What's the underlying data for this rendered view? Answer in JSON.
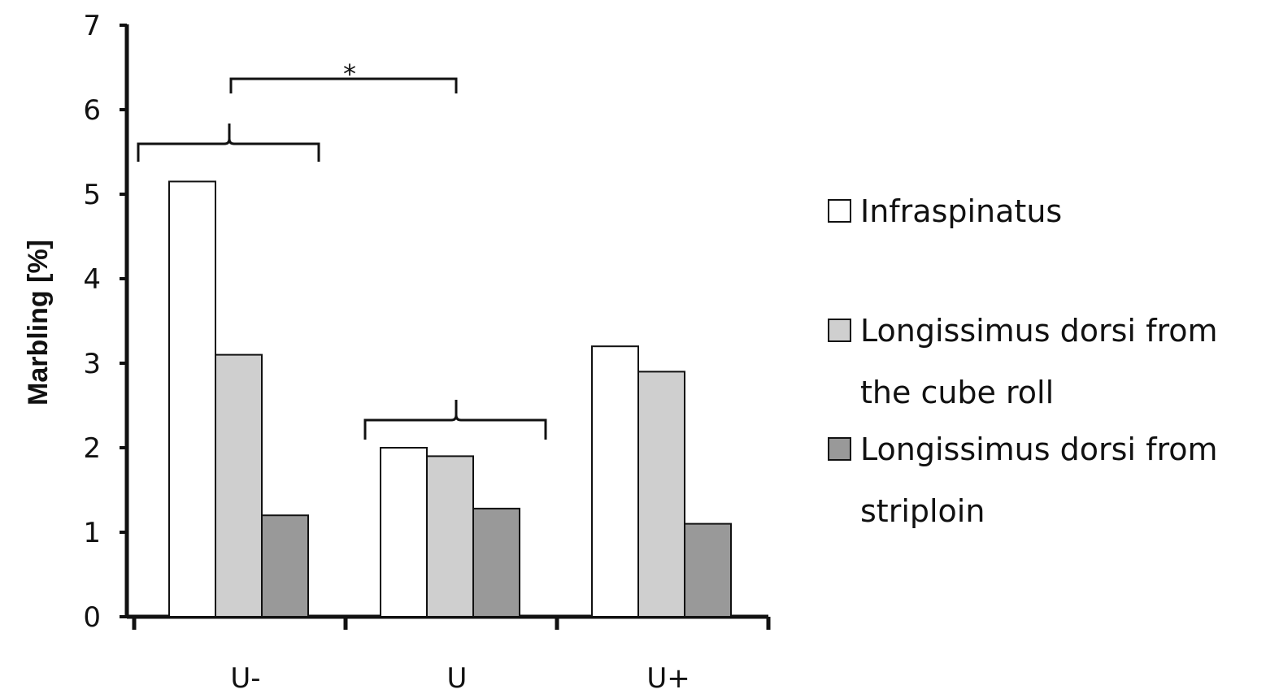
{
  "chart_data": {
    "type": "bar",
    "title": "",
    "xlabel": "",
    "ylabel": "Marbling [%]",
    "ylim": [
      0,
      7
    ],
    "yticks": [
      "0",
      "1",
      "2",
      "3",
      "4",
      "5",
      "6",
      "7"
    ],
    "categories": [
      "U-",
      "U",
      "U+"
    ],
    "series": [
      {
        "name": "Infraspinatus",
        "color": "#ffffff",
        "values": [
          5.15,
          2.0,
          3.2
        ]
      },
      {
        "name": "Longissimus dorsi from the cube roll",
        "color": "#cfcfcf",
        "values": [
          3.1,
          1.9,
          2.9
        ]
      },
      {
        "name": "Longissimus dorsi from striploin",
        "color": "#999999",
        "values": [
          1.2,
          1.28,
          1.1
        ]
      }
    ],
    "legend": {
      "placement": "right",
      "entries": [
        {
          "lines": [
            "Infraspinatus"
          ]
        },
        {
          "lines": [
            "Longissimus dorsi from",
            "the cube roll"
          ]
        },
        {
          "lines": [
            "Longissimus dorsi from",
            "striploin"
          ]
        }
      ]
    },
    "annotations": [
      {
        "type": "significance",
        "text": "*",
        "from_category": "U-",
        "to_category": "U"
      }
    ],
    "grid": false
  }
}
